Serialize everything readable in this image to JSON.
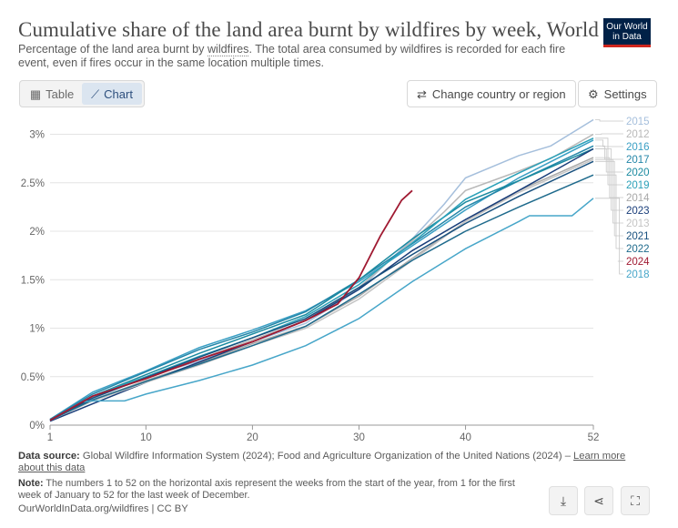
{
  "header": {
    "title": "Cumulative share of the land area burnt by wildfires by week, World",
    "subtitle_pre": "Percentage of the land area burnt by ",
    "subtitle_link": "wildfires",
    "subtitle_post": ". The total area consumed by wildfires is recorded for each fire event, even if fires occur in the same location multiple times.",
    "logo_line1": "Our World",
    "logo_line2": "in Data"
  },
  "toolbar": {
    "table_label": "Table",
    "chart_label": "Chart",
    "change_region_label": "Change country or region",
    "settings_label": "Settings"
  },
  "footer": {
    "source_label": "Data source:",
    "source_text": "Global Wildfire Information System (2024); Food and Agriculture Organization of the United Nations (2024) –",
    "learn_more": "Learn more about this data",
    "note_label": "Note:",
    "note_text": "The numbers 1 to 52 on the horizontal axis represent the weeks from the start of the year, from 1 for the first week of January to 52 for the last week of December.",
    "url_text": "OurWorldInData.org/wildfires | CC BY"
  },
  "colors": {
    "2015": "#a5bfdc",
    "2012": "#b8b8b8",
    "2016": "#3a9fc4",
    "2017": "#2486a8",
    "2020": "#1a8aa0",
    "2019": "#2aa0b8",
    "2014": "#a8a8a8",
    "2023": "#1a3e7a",
    "2013": "#c4c4c4",
    "2021": "#18507e",
    "2022": "#1e6a8c",
    "2024": "#a01a32",
    "2018": "#47a6c9"
  },
  "chart_data": {
    "type": "line",
    "xlim": [
      1,
      52
    ],
    "ylim": [
      0,
      3.1
    ],
    "x_ticks": [
      1,
      10,
      20,
      30,
      40,
      52
    ],
    "y_ticks": [
      {
        "v": 0,
        "label": "0%"
      },
      {
        "v": 0.5,
        "label": "0.5%"
      },
      {
        "v": 1,
        "label": "1%"
      },
      {
        "v": 1.5,
        "label": "1.5%"
      },
      {
        "v": 2,
        "label": "2%"
      },
      {
        "v": 2.5,
        "label": "2.5%"
      },
      {
        "v": 3,
        "label": "3%"
      }
    ],
    "grid": true,
    "legend_order": [
      "2015",
      "2012",
      "2016",
      "2017",
      "2020",
      "2019",
      "2014",
      "2023",
      "2013",
      "2021",
      "2022",
      "2024",
      "2018"
    ],
    "series": [
      {
        "name": "2015",
        "x": [
          1,
          5,
          10,
          15,
          20,
          25,
          30,
          35,
          38,
          40,
          45,
          48,
          52
        ],
        "y": [
          0.05,
          0.27,
          0.5,
          0.66,
          0.86,
          1.05,
          1.4,
          1.92,
          2.28,
          2.55,
          2.78,
          2.88,
          3.15
        ]
      },
      {
        "name": "2012",
        "x": [
          1,
          5,
          10,
          15,
          20,
          25,
          30,
          35,
          38,
          40,
          45,
          48,
          52
        ],
        "y": [
          0.05,
          0.28,
          0.5,
          0.68,
          0.88,
          1.08,
          1.42,
          1.9,
          2.2,
          2.42,
          2.62,
          2.75,
          3.0
        ]
      },
      {
        "name": "2016",
        "x": [
          1,
          5,
          10,
          15,
          20,
          25,
          30,
          35,
          40,
          45,
          52
        ],
        "y": [
          0.06,
          0.34,
          0.56,
          0.8,
          0.98,
          1.18,
          1.48,
          1.85,
          2.22,
          2.55,
          2.94
        ]
      },
      {
        "name": "2017",
        "x": [
          1,
          5,
          10,
          15,
          20,
          25,
          30,
          35,
          40,
          45,
          52
        ],
        "y": [
          0.06,
          0.32,
          0.55,
          0.78,
          0.96,
          1.17,
          1.5,
          1.87,
          2.25,
          2.52,
          2.88
        ]
      },
      {
        "name": "2020",
        "x": [
          1,
          5,
          10,
          15,
          20,
          25,
          30,
          35,
          40,
          45,
          52
        ],
        "y": [
          0.05,
          0.3,
          0.52,
          0.74,
          0.94,
          1.14,
          1.5,
          1.92,
          2.3,
          2.52,
          2.85
        ]
      },
      {
        "name": "2019",
        "x": [
          1,
          5,
          10,
          15,
          20,
          25,
          30,
          35,
          40,
          45,
          52
        ],
        "y": [
          0.05,
          0.3,
          0.5,
          0.71,
          0.9,
          1.12,
          1.45,
          1.88,
          2.33,
          2.6,
          2.96
        ]
      },
      {
        "name": "2014",
        "x": [
          1,
          5,
          10,
          15,
          20,
          25,
          30,
          35,
          40,
          45,
          52
        ],
        "y": [
          0.05,
          0.26,
          0.46,
          0.64,
          0.84,
          1.02,
          1.33,
          1.72,
          2.1,
          2.42,
          2.76
        ]
      },
      {
        "name": "2023",
        "x": [
          1,
          5,
          10,
          15,
          20,
          25,
          30,
          35,
          40,
          45,
          52
        ],
        "y": [
          0.04,
          0.22,
          0.44,
          0.65,
          0.86,
          1.08,
          1.4,
          1.8,
          2.12,
          2.42,
          2.85
        ]
      },
      {
        "name": "2013",
        "x": [
          1,
          5,
          10,
          15,
          20,
          25,
          30,
          35,
          40,
          45,
          52
        ],
        "y": [
          0.05,
          0.25,
          0.44,
          0.62,
          0.82,
          1.0,
          1.3,
          1.7,
          2.1,
          2.4,
          2.74
        ]
      },
      {
        "name": "2021",
        "x": [
          1,
          5,
          10,
          15,
          20,
          25,
          30,
          35,
          40,
          45,
          52
        ],
        "y": [
          0.05,
          0.28,
          0.49,
          0.7,
          0.9,
          1.1,
          1.42,
          1.76,
          2.08,
          2.36,
          2.72
        ]
      },
      {
        "name": "2022",
        "x": [
          1,
          5,
          10,
          15,
          20,
          25,
          30,
          35,
          40,
          45,
          52
        ],
        "y": [
          0.05,
          0.26,
          0.45,
          0.63,
          0.82,
          1.02,
          1.35,
          1.7,
          2.0,
          2.25,
          2.58
        ]
      },
      {
        "name": "2024",
        "x": [
          1,
          5,
          10,
          15,
          20,
          25,
          28,
          30,
          32,
          34,
          35
        ],
        "y": [
          0.05,
          0.3,
          0.48,
          0.68,
          0.86,
          1.08,
          1.25,
          1.52,
          1.95,
          2.32,
          2.42
        ]
      },
      {
        "name": "2018",
        "x": [
          1,
          4,
          5,
          8,
          10,
          15,
          20,
          25,
          30,
          35,
          40,
          45,
          46,
          50,
          52
        ],
        "y": [
          0.05,
          0.24,
          0.25,
          0.25,
          0.32,
          0.46,
          0.62,
          0.82,
          1.1,
          1.48,
          1.82,
          2.1,
          2.16,
          2.16,
          2.34
        ]
      }
    ]
  }
}
